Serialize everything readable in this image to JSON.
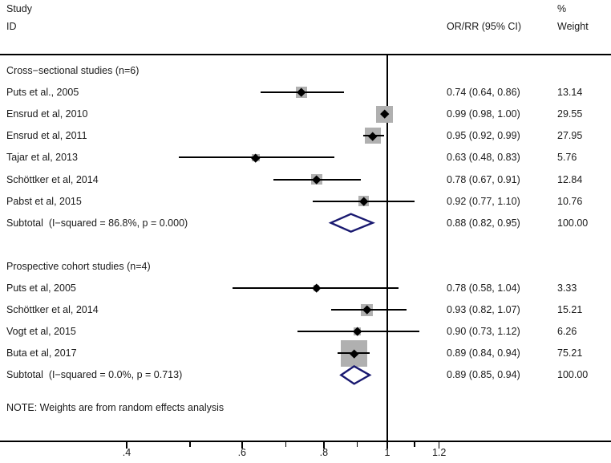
{
  "header": {
    "study_line1": "Study",
    "study_line2": "ID",
    "or_col": "OR/RR (95% CI)",
    "weight_line1": "%",
    "weight_line2": "Weight"
  },
  "note": "NOTE: Weights are from random effects analysis",
  "colors": {
    "square": "#b0b0b0",
    "ci_line": "#000000",
    "marker": "#000000",
    "diamond": "#191970",
    "rule": "#000000",
    "text": "#1a1a1a"
  },
  "chart_data": {
    "type": "forest",
    "title": "",
    "x_scale": "log",
    "reference_value": 1,
    "x_axis": {
      "major_ticks": [
        {
          "value": 0.4,
          "label": ".4"
        },
        {
          "value": 0.6,
          "label": ".6"
        },
        {
          "value": 0.8,
          "label": ".8"
        },
        {
          "value": 1,
          "label": "1"
        },
        {
          "value": 1.2,
          "label": "1.2"
        }
      ],
      "minor_ticks": [
        0.5,
        0.7,
        0.9,
        1.1
      ]
    },
    "groups": [
      {
        "header": "Cross−sectional studies (n=6)",
        "studies": [
          {
            "label": "Puts et al., 2005",
            "estimate": 0.74,
            "ci_low": 0.64,
            "ci_high": 0.86,
            "ci_text": "0.74 (0.64, 0.86)",
            "weight": 13.14,
            "weight_text": "13.14"
          },
          {
            "label": "Ensrud et al, 2010",
            "estimate": 0.99,
            "ci_low": 0.98,
            "ci_high": 1.0,
            "ci_text": "0.99 (0.98, 1.00)",
            "weight": 29.55,
            "weight_text": "29.55"
          },
          {
            "label": "Ensrud et al, 2011",
            "estimate": 0.95,
            "ci_low": 0.92,
            "ci_high": 0.99,
            "ci_text": "0.95 (0.92, 0.99)",
            "weight": 27.95,
            "weight_text": "27.95"
          },
          {
            "label": "Tajar et al, 2013",
            "estimate": 0.63,
            "ci_low": 0.48,
            "ci_high": 0.83,
            "ci_text": "0.63 (0.48, 0.83)",
            "weight": 5.76,
            "weight_text": "5.76"
          },
          {
            "label": "Schöttker et al, 2014",
            "estimate": 0.78,
            "ci_low": 0.67,
            "ci_high": 0.91,
            "ci_text": "0.78 (0.67, 0.91)",
            "weight": 12.84,
            "weight_text": "12.84"
          },
          {
            "label": "Pabst et al, 2015",
            "estimate": 0.92,
            "ci_low": 0.77,
            "ci_high": 1.1,
            "ci_text": "0.92 (0.77, 1.10)",
            "weight": 10.76,
            "weight_text": "10.76"
          }
        ],
        "subtotal": {
          "label": "Subtotal  (I−squared = 86.8%, p = 0.000)",
          "estimate": 0.88,
          "ci_low": 0.82,
          "ci_high": 0.95,
          "ci_text": "0.88 (0.82, 0.95)",
          "weight_text": "100.00"
        }
      },
      {
        "header": "Prospective cohort studies (n=4)",
        "studies": [
          {
            "label": "Puts et al, 2005",
            "estimate": 0.78,
            "ci_low": 0.58,
            "ci_high": 1.04,
            "ci_text": "0.78 (0.58, 1.04)",
            "weight": 3.33,
            "weight_text": "3.33"
          },
          {
            "label": "Schöttker et al, 2014",
            "estimate": 0.93,
            "ci_low": 0.82,
            "ci_high": 1.07,
            "ci_text": "0.93 (0.82, 1.07)",
            "weight": 15.21,
            "weight_text": "15.21"
          },
          {
            "label": "Vogt et al, 2015",
            "estimate": 0.9,
            "ci_low": 0.73,
            "ci_high": 1.12,
            "ci_text": "0.90 (0.73, 1.12)",
            "weight": 6.26,
            "weight_text": "6.26"
          },
          {
            "label": "Buta et al, 2017",
            "estimate": 0.89,
            "ci_low": 0.84,
            "ci_high": 0.94,
            "ci_text": "0.89 (0.84, 0.94)",
            "weight": 75.21,
            "weight_text": "75.21"
          }
        ],
        "subtotal": {
          "label": "Subtotal  (I−squared = 0.0%, p = 0.713)",
          "estimate": 0.89,
          "ci_low": 0.85,
          "ci_high": 0.94,
          "ci_text": "0.89 (0.85, 0.94)",
          "weight_text": "100.00"
        }
      }
    ],
    "note": "NOTE: Weights are from random effects analysis"
  }
}
